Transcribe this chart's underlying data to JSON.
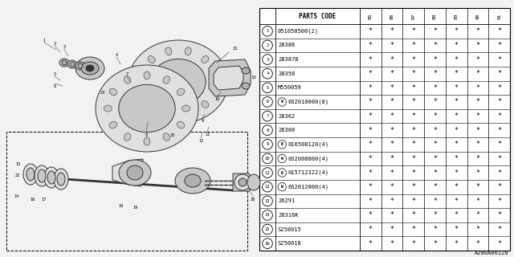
{
  "parts": [
    {
      "num": "1",
      "prefix": "",
      "code": "051050500(2)"
    },
    {
      "num": "2",
      "prefix": "",
      "code": "28386"
    },
    {
      "num": "3",
      "prefix": "",
      "code": "28387B"
    },
    {
      "num": "4",
      "prefix": "",
      "code": "28358"
    },
    {
      "num": "5",
      "prefix": "",
      "code": "M550059"
    },
    {
      "num": "6",
      "prefix": "W",
      "code": "032010000(8)"
    },
    {
      "num": "7",
      "prefix": "",
      "code": "28362"
    },
    {
      "num": "8",
      "prefix": "",
      "code": "26300"
    },
    {
      "num": "9",
      "prefix": "B",
      "code": "016508120(4)"
    },
    {
      "num": "10",
      "prefix": "W",
      "code": "032008000(4)"
    },
    {
      "num": "11",
      "prefix": "B",
      "code": "015712322(4)"
    },
    {
      "num": "12",
      "prefix": "W",
      "code": "032012000(4)"
    },
    {
      "num": "13",
      "prefix": "",
      "code": "26291"
    },
    {
      "num": "14",
      "prefix": "",
      "code": "28316K"
    },
    {
      "num": "15",
      "prefix": "",
      "code": "S250015"
    },
    {
      "num": "16",
      "prefix": "",
      "code": "S250018"
    }
  ],
  "col_headers": [
    "85",
    "86",
    "87",
    "88",
    "89",
    "90",
    "91"
  ],
  "footer_text": "A280A00128",
  "bg_color": "#f0f0f0",
  "table_bg": "#ffffff"
}
